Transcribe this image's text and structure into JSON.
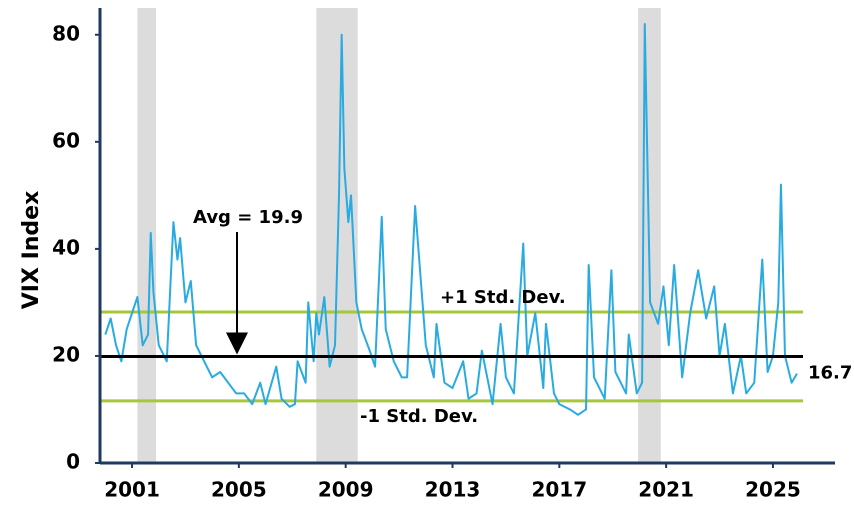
{
  "chart_data": {
    "type": "line",
    "ylabel": "VIX Index",
    "xlim": [
      1999.8,
      2026.2
    ],
    "xticks": [
      2001,
      2005,
      2009,
      2013,
      2017,
      2021,
      2025
    ],
    "ylim": [
      0,
      85
    ],
    "yticks": [
      0,
      20,
      40,
      60,
      80
    ],
    "recessions": [
      [
        2001.2,
        2001.9
      ],
      [
        2007.9,
        2009.45
      ],
      [
        2019.95,
        2020.8
      ]
    ],
    "recession_color": "#dcdcdc",
    "average": {
      "label": "Avg = 19.9",
      "value": 19.9,
      "color": "#000000"
    },
    "bands": [
      {
        "label": "+1 Std. Dev.",
        "value": 28.2,
        "color": "#a8c639"
      },
      {
        "label": "-1 Std. Dev.",
        "value": 11.6,
        "color": "#a8c639"
      }
    ],
    "series": [
      {
        "name": "VIX",
        "color": "#29abe2",
        "x": [
          2000.0,
          2000.2,
          2000.4,
          2000.6,
          2000.8,
          2001.0,
          2001.2,
          2001.4,
          2001.6,
          2001.7,
          2001.8,
          2002.0,
          2002.3,
          2002.55,
          2002.7,
          2002.8,
          2003.0,
          2003.2,
          2003.4,
          2003.7,
          2004.0,
          2004.3,
          2004.6,
          2004.9,
          2005.2,
          2005.5,
          2005.8,
          2006.0,
          2006.4,
          2006.6,
          2006.9,
          2007.1,
          2007.2,
          2007.5,
          2007.6,
          2007.8,
          2007.9,
          2008.0,
          2008.2,
          2008.4,
          2008.6,
          2008.75,
          2008.85,
          2008.95,
          2009.1,
          2009.2,
          2009.4,
          2009.6,
          2009.9,
          2010.1,
          2010.35,
          2010.5,
          2010.8,
          2011.1,
          2011.3,
          2011.6,
          2011.8,
          2012.0,
          2012.3,
          2012.4,
          2012.7,
          2013.0,
          2013.4,
          2013.6,
          2013.9,
          2014.1,
          2014.5,
          2014.8,
          2015.0,
          2015.3,
          2015.65,
          2015.8,
          2016.1,
          2016.4,
          2016.5,
          2016.8,
          2017.0,
          2017.4,
          2017.7,
          2018.0,
          2018.1,
          2018.3,
          2018.7,
          2018.95,
          2019.1,
          2019.5,
          2019.6,
          2019.9,
          2020.1,
          2020.2,
          2020.4,
          2020.7,
          2020.9,
          2021.1,
          2021.3,
          2021.6,
          2021.9,
          2022.2,
          2022.5,
          2022.8,
          2023.0,
          2023.2,
          2023.5,
          2023.8,
          2024.0,
          2024.3,
          2024.6,
          2024.8,
          2025.0,
          2025.2,
          2025.3,
          2025.45,
          2025.7,
          2025.9
        ],
        "values": [
          24,
          27,
          22,
          19,
          25,
          28,
          31,
          22,
          24,
          43,
          32,
          22,
          19,
          45,
          38,
          42,
          30,
          34,
          22,
          19,
          16,
          17,
          15,
          13,
          13,
          11,
          15,
          11,
          18,
          12,
          10.5,
          11,
          19,
          15,
          30,
          19,
          28,
          24,
          31,
          18,
          22,
          50,
          80,
          55,
          45,
          50,
          30,
          25,
          21,
          18,
          46,
          25,
          19,
          16,
          16,
          48,
          35,
          22,
          16,
          26,
          15,
          14,
          19,
          12,
          13,
          21,
          11,
          26,
          16,
          13,
          41,
          20,
          28,
          14,
          26,
          13,
          11,
          10,
          9,
          10,
          37,
          16,
          12,
          36,
          17,
          13,
          24,
          13,
          15,
          82,
          30,
          26,
          33,
          22,
          37,
          16,
          28,
          36,
          27,
          33,
          20,
          26,
          13,
          20,
          13,
          15,
          38,
          17,
          20,
          30,
          52,
          20,
          15,
          16.7
        ]
      }
    ]
  }
}
